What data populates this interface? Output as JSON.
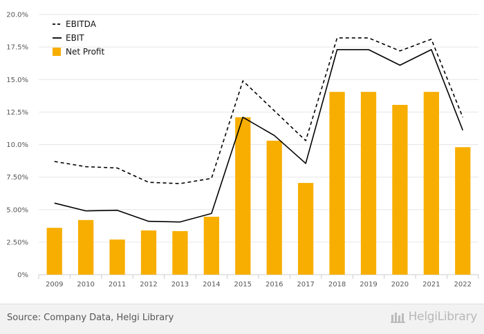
{
  "chart_data": {
    "type": "bar",
    "categories": [
      "2009",
      "2010",
      "2011",
      "2012",
      "2013",
      "2014",
      "2015",
      "2016",
      "2017",
      "2018",
      "2019",
      "2020",
      "2021",
      "2022"
    ],
    "ylim": [
      0,
      20
    ],
    "yticks": [
      "0%",
      "2.50%",
      "5.00%",
      "7.50%",
      "10.0%",
      "12.5%",
      "15.0%",
      "17.5%",
      "20.0%"
    ],
    "grid": true,
    "legend_position": "top-left",
    "series": [
      {
        "name": "EBITDA",
        "kind": "line",
        "style": "dashed",
        "color": "#000000",
        "values": [
          8.7,
          8.3,
          8.2,
          7.1,
          7.0,
          7.4,
          14.9,
          12.6,
          10.3,
          18.2,
          18.2,
          17.2,
          18.1,
          12.1
        ]
      },
      {
        "name": "EBIT",
        "kind": "line",
        "style": "solid",
        "color": "#000000",
        "values": [
          5.5,
          4.9,
          4.95,
          4.1,
          4.05,
          4.7,
          12.1,
          10.7,
          8.55,
          17.3,
          17.3,
          16.1,
          17.3,
          11.1
        ]
      },
      {
        "name": "Net Profit",
        "kind": "bar",
        "color": "#f7ae00",
        "values": [
          3.6,
          4.2,
          2.7,
          3.4,
          3.35,
          4.45,
          12.1,
          10.3,
          7.05,
          14.05,
          14.05,
          13.05,
          14.05,
          9.8
        ]
      }
    ]
  },
  "footer": {
    "source": "Source: Company Data, Helgi Library",
    "brand": "HelgiLibrary"
  },
  "colors": {
    "grid": "#e6e6e6",
    "axis": "#cccccc",
    "bar": "#f7ae00",
    "footer_bg": "#f2f2f2"
  }
}
